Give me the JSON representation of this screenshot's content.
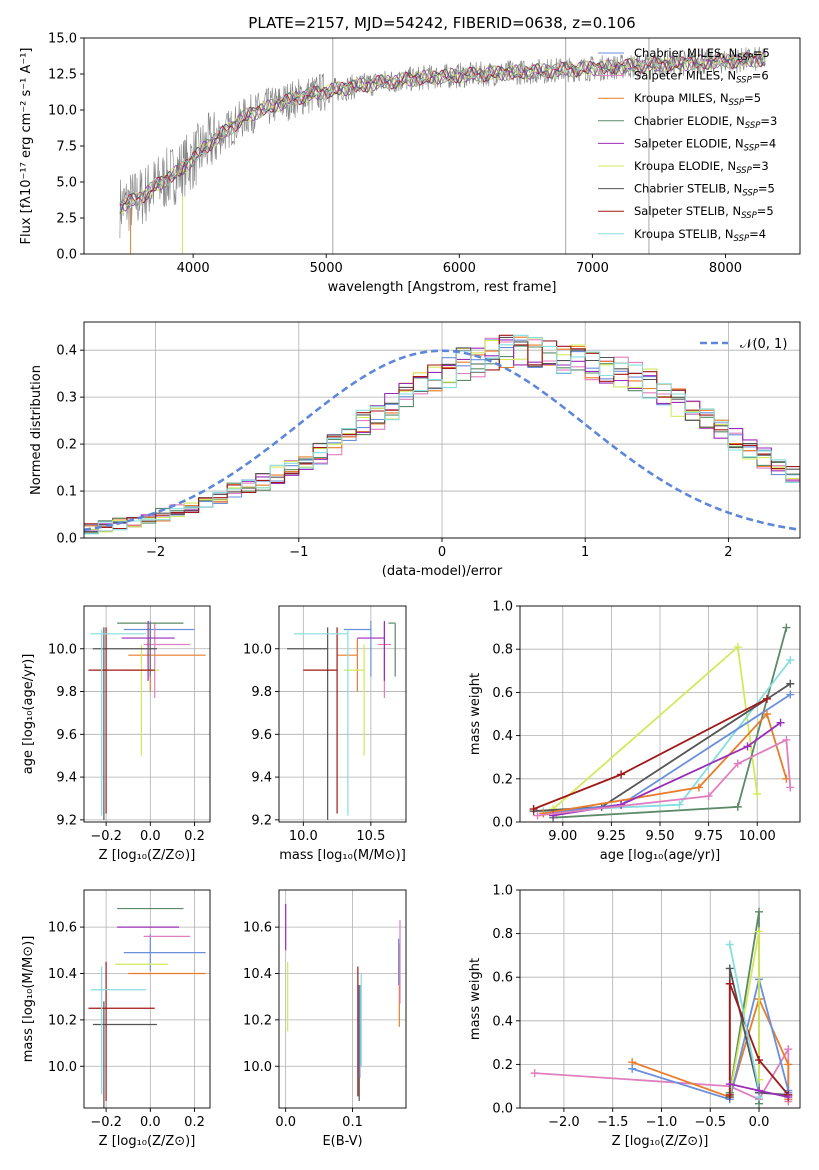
{
  "title": "PLATE=2157, MJD=54242, FIBERID=0638, z=0.106",
  "colors": {
    "chabrier_miles": "#6a8fdc",
    "salpeter_miles": "#e07fbf",
    "kroupa_miles": "#e87d2a",
    "chabrier_elodie": "#5c8a68",
    "salpeter_elodie": "#9a2db8",
    "kroupa_elodie": "#d3e85a",
    "chabrier_stelib": "#555555",
    "salpeter_stelib": "#a01818",
    "kroupa_stelib": "#86dede",
    "data": "#808080"
  },
  "chart_data": [
    {
      "id": "spectrum",
      "type": "line",
      "title": "PLATE=2157, MJD=54242, FIBERID=0638, z=0.106",
      "xlabel": "wavelength [Angstrom, rest frame]",
      "ylabel": "Flux [fλ10⁻¹⁷ erg cm⁻² s⁻¹ A⁻¹]",
      "xlim": [
        3180,
        8560
      ],
      "ylim": [
        0,
        15
      ],
      "xticks": [
        "4000",
        "5000",
        "6000",
        "7000",
        "8000"
      ],
      "yticks": [
        "0.0",
        "2.5",
        "5.0",
        "7.5",
        "10.0",
        "12.5",
        "15.0"
      ],
      "grid": false,
      "legend_position": "top-right",
      "continuum": {
        "x": [
          3450,
          3600,
          3700,
          3800,
          3900,
          4000,
          4100,
          4200,
          4300,
          4400,
          4600,
          4800,
          5000,
          5200,
          5400,
          5600,
          5800,
          6000,
          6200,
          6400,
          6600,
          6800,
          7000,
          7200,
          7400,
          7600,
          7800,
          8000,
          8200,
          8300
        ],
        "y": [
          3.3,
          3.9,
          4.6,
          5.2,
          5.8,
          6.6,
          7.5,
          8.2,
          8.9,
          9.6,
          10.3,
          10.9,
          11.3,
          11.6,
          11.9,
          12.1,
          12.3,
          12.4,
          12.5,
          12.6,
          12.7,
          12.8,
          12.9,
          13.0,
          13.1,
          13.2,
          13.3,
          13.4,
          13.5,
          13.5
        ]
      },
      "series": [
        {
          "name": "Chabrier MILES, N_SSP=5",
          "key": "chabrier_miles"
        },
        {
          "name": "Salpeter MILES, N_SSP=6",
          "key": "salpeter_miles"
        },
        {
          "name": "Kroupa MILES, N_SSP=5",
          "key": "kroupa_miles"
        },
        {
          "name": "Chabrier ELODIE, N_SSP=3",
          "key": "chabrier_elodie"
        },
        {
          "name": "Salpeter ELODIE, N_SSP=4",
          "key": "salpeter_elodie"
        },
        {
          "name": "Kroupa ELODIE, N_SSP=3",
          "key": "kroupa_elodie"
        },
        {
          "name": "Chabrier STELIB, N_SSP=5",
          "key": "chabrier_stelib"
        },
        {
          "name": "Salpeter STELIB, N_SSP=5",
          "key": "salpeter_stelib"
        },
        {
          "name": "Kroupa STELIB, N_SSP=4",
          "key": "kroupa_stelib"
        }
      ]
    },
    {
      "id": "residuals",
      "type": "step-histogram",
      "xlabel": "(data-model)/error",
      "ylabel": "Normed distribution",
      "xlim": [
        -2.5,
        2.5
      ],
      "ylim": [
        0,
        0.46
      ],
      "xticks": [
        "−2",
        "−1",
        "0",
        "1",
        "2"
      ],
      "yticks": [
        "0.0",
        "0.1",
        "0.2",
        "0.3",
        "0.4"
      ],
      "grid": true,
      "legend": "𝒩(0, 1)",
      "legend_position": "top-right",
      "bin_width": 0.1,
      "bin_start": -2.5,
      "base_density": [
        0.02,
        0.025,
        0.03,
        0.035,
        0.04,
        0.05,
        0.06,
        0.065,
        0.075,
        0.09,
        0.1,
        0.11,
        0.12,
        0.135,
        0.15,
        0.16,
        0.18,
        0.2,
        0.22,
        0.245,
        0.26,
        0.28,
        0.3,
        0.32,
        0.34,
        0.355,
        0.37,
        0.38,
        0.39,
        0.395,
        0.395,
        0.39,
        0.385,
        0.38,
        0.375,
        0.37,
        0.36,
        0.35,
        0.34,
        0.33,
        0.31,
        0.29,
        0.27,
        0.25,
        0.23,
        0.21,
        0.19,
        0.17,
        0.15,
        0.135,
        0.12,
        0.105,
        0.09,
        0.08,
        0.07,
        0.06,
        0.05,
        0.04,
        0.035,
        0.03
      ]
    },
    {
      "id": "age_vs_Z",
      "type": "errorbar",
      "xlabel": "Z [log₁₀(Z/Z⊙)]",
      "ylabel": "age  [log₁₀(age/yr)]",
      "xlim": [
        -0.3,
        0.27
      ],
      "ylim": [
        9.19,
        10.2
      ],
      "xticks": [
        "−0.2",
        "0.0",
        "0.2"
      ],
      "yticks": [
        "9.2",
        "9.4",
        "9.6",
        "9.8",
        "10.0"
      ],
      "grid": true,
      "points": [
        {
          "key": "chabrier_miles",
          "x": 0.0,
          "xerr": [
            0.12,
            0.2
          ],
          "y": 10.09,
          "yerr": [
            0.22,
            0.04
          ]
        },
        {
          "key": "salpeter_miles",
          "x": 0.02,
          "xerr": [
            0.05,
            0.16
          ],
          "y": 10.02,
          "yerr": [
            0.25,
            0.1
          ]
        },
        {
          "key": "kroupa_miles",
          "x": 0.0,
          "xerr": [
            0.1,
            0.25
          ],
          "y": 9.97,
          "yerr": [
            0.17,
            0.08
          ]
        },
        {
          "key": "chabrier_elodie",
          "x": 0.0,
          "xerr": [
            0.15,
            0.15
          ],
          "y": 10.12,
          "yerr": [
            0.25,
            0.0
          ]
        },
        {
          "key": "salpeter_elodie",
          "x": -0.01,
          "xerr": [
            0.12,
            0.12
          ],
          "y": 10.05,
          "yerr": [
            0.2,
            0.08
          ]
        },
        {
          "key": "kroupa_elodie",
          "x": -0.04,
          "xerr": [
            0.08,
            0.08
          ],
          "y": 9.9,
          "yerr": [
            0.4,
            0.12
          ]
        },
        {
          "key": "chabrier_stelib",
          "x": -0.21,
          "xerr": [
            0.05,
            0.24
          ],
          "y": 10.0,
          "yerr": [
            0.8,
            0.1
          ]
        },
        {
          "key": "salpeter_stelib",
          "x": -0.2,
          "xerr": [
            0.08,
            0.22
          ],
          "y": 9.9,
          "yerr": [
            0.67,
            0.2
          ]
        },
        {
          "key": "kroupa_stelib",
          "x": -0.22,
          "xerr": [
            0.05,
            0.2
          ],
          "y": 10.07,
          "yerr": [
            0.85,
            0.02
          ]
        }
      ]
    },
    {
      "id": "age_vs_mass",
      "type": "errorbar",
      "xlabel": "mass [log₁₀(M/M⊙)]",
      "ylabel": "",
      "xlim": [
        9.82,
        10.76
      ],
      "ylim": [
        9.19,
        10.2
      ],
      "xticks": [
        "10.0",
        "10.5"
      ],
      "yticks": [
        "9.2",
        "9.4",
        "9.6",
        "9.8",
        "10.0"
      ],
      "grid": true,
      "points": [
        {
          "key": "chabrier_miles",
          "x": 10.5,
          "xerr": [
            0.2,
            0.0
          ],
          "y": 10.09,
          "yerr": [
            0.22,
            0.04
          ]
        },
        {
          "key": "salpeter_miles",
          "x": 10.6,
          "xerr": [
            0.05,
            0.05
          ],
          "y": 10.02,
          "yerr": [
            0.25,
            0.1
          ]
        },
        {
          "key": "kroupa_miles",
          "x": 10.4,
          "xerr": [
            0.15,
            0.0
          ],
          "y": 9.97,
          "yerr": [
            0.17,
            0.08
          ]
        },
        {
          "key": "chabrier_elodie",
          "x": 10.68,
          "xerr": [
            0.05,
            0.0
          ],
          "y": 10.12,
          "yerr": [
            0.25,
            0.0
          ]
        },
        {
          "key": "salpeter_elodie",
          "x": 10.6,
          "xerr": [
            0.2,
            0.0
          ],
          "y": 10.05,
          "yerr": [
            0.2,
            0.08
          ]
        },
        {
          "key": "kroupa_elodie",
          "x": 10.45,
          "xerr": [
            0.15,
            0.0
          ],
          "y": 9.9,
          "yerr": [
            0.4,
            0.12
          ]
        },
        {
          "key": "chabrier_stelib",
          "x": 10.18,
          "xerr": [
            0.3,
            0.0
          ],
          "y": 10.0,
          "yerr": [
            0.8,
            0.1
          ]
        },
        {
          "key": "salpeter_stelib",
          "x": 10.25,
          "xerr": [
            0.25,
            0.0
          ],
          "y": 9.9,
          "yerr": [
            0.67,
            0.2
          ]
        },
        {
          "key": "kroupa_stelib",
          "x": 10.33,
          "xerr": [
            0.4,
            0.0
          ],
          "y": 10.07,
          "yerr": [
            0.85,
            0.02
          ]
        }
      ]
    },
    {
      "id": "massweight_vs_age",
      "type": "line",
      "xlabel": "age  [log₁₀(age/yr)]",
      "ylabel": "mass weight",
      "xlim": [
        8.78,
        10.22
      ],
      "ylim": [
        0,
        1.0
      ],
      "xticks": [
        "9.00",
        "9.25",
        "9.50",
        "9.75",
        "10.00"
      ],
      "yticks": [
        "0.0",
        "0.2",
        "0.4",
        "0.6",
        "0.8",
        "1.0"
      ],
      "grid": true,
      "series": [
        {
          "key": "kroupa_elodie",
          "x": [
            8.95,
            9.9,
            10.0
          ],
          "y": [
            0.06,
            0.81,
            0.13
          ]
        },
        {
          "key": "chabrier_elodie",
          "x": [
            8.95,
            9.9,
            10.15
          ],
          "y": [
            0.02,
            0.07,
            0.9
          ]
        },
        {
          "key": "kroupa_stelib",
          "x": [
            8.9,
            9.6,
            10.17
          ],
          "y": [
            0.05,
            0.08,
            0.75
          ]
        },
        {
          "key": "chabrier_stelib",
          "x": [
            8.85,
            9.2,
            10.17
          ],
          "y": [
            0.05,
            0.07,
            0.64
          ]
        },
        {
          "key": "salpeter_stelib",
          "x": [
            8.85,
            9.3,
            10.05
          ],
          "y": [
            0.06,
            0.22,
            0.57
          ]
        },
        {
          "key": "chabrier_miles",
          "x": [
            8.9,
            9.3,
            10.17
          ],
          "y": [
            0.04,
            0.08,
            0.59
          ]
        },
        {
          "key": "kroupa_miles",
          "x": [
            8.9,
            9.7,
            10.05,
            10.15
          ],
          "y": [
            0.04,
            0.16,
            0.5,
            0.2
          ]
        },
        {
          "key": "salpeter_elodie",
          "x": [
            8.95,
            9.3,
            9.95,
            10.12
          ],
          "y": [
            0.03,
            0.08,
            0.35,
            0.46
          ]
        },
        {
          "key": "salpeter_miles",
          "x": [
            8.87,
            9.75,
            9.9,
            10.15,
            10.17
          ],
          "y": [
            0.03,
            0.12,
            0.27,
            0.38,
            0.16
          ]
        }
      ]
    },
    {
      "id": "mass_vs_Z",
      "type": "errorbar",
      "xlabel": "Z [log₁₀(Z/Z⊙)]",
      "ylabel": "mass [log₁₀(M/M⊙)]",
      "xlim": [
        -0.3,
        0.27
      ],
      "ylim": [
        9.82,
        10.76
      ],
      "xticks": [
        "−0.2",
        "0.0",
        "0.2"
      ],
      "yticks": [
        "10.0",
        "10.2",
        "10.4",
        "10.6"
      ],
      "grid": true,
      "points": [
        {
          "key": "chabrier_miles",
          "x": 0.0,
          "xerr": [
            0.12,
            0.25
          ],
          "y": 10.49,
          "yerr": [
            0.08,
            0.08
          ]
        },
        {
          "key": "salpeter_miles",
          "x": 0.02,
          "xerr": [
            0.05,
            0.16
          ],
          "y": 10.56,
          "yerr": [
            0.0,
            0.0
          ]
        },
        {
          "key": "kroupa_miles",
          "x": 0.0,
          "xerr": [
            0.1,
            0.25
          ],
          "y": 10.4,
          "yerr": [
            0.0,
            0.0
          ]
        },
        {
          "key": "chabrier_elodie",
          "x": 0.0,
          "xerr": [
            0.15,
            0.15
          ],
          "y": 10.68,
          "yerr": [
            0.0,
            0.0
          ]
        },
        {
          "key": "salpeter_elodie",
          "x": -0.01,
          "xerr": [
            0.14,
            0.14
          ],
          "y": 10.6,
          "yerr": [
            0.0,
            0.0
          ]
        },
        {
          "key": "kroupa_elodie",
          "x": -0.04,
          "xerr": [
            0.12,
            0.12
          ],
          "y": 10.44,
          "yerr": [
            0.0,
            0.0
          ]
        },
        {
          "key": "chabrier_stelib",
          "x": -0.21,
          "xerr": [
            0.05,
            0.24
          ],
          "y": 10.18,
          "yerr": [
            0.4,
            0.1
          ]
        },
        {
          "key": "salpeter_stelib",
          "x": -0.2,
          "xerr": [
            0.08,
            0.22
          ],
          "y": 10.25,
          "yerr": [
            0.4,
            0.2
          ]
        },
        {
          "key": "kroupa_stelib",
          "x": -0.22,
          "xerr": [
            0.05,
            0.2
          ],
          "y": 10.33,
          "yerr": [
            0.45,
            0.1
          ]
        }
      ]
    },
    {
      "id": "mass_vs_EBV",
      "type": "errorbar",
      "xlabel": "E(B-V)",
      "ylabel": "",
      "xlim": [
        -0.01,
        0.18
      ],
      "ylim": [
        9.82,
        10.76
      ],
      "xticks": [
        "0.0",
        "0.1"
      ],
      "yticks": [
        "10.0",
        "10.2",
        "10.4",
        "10.6"
      ],
      "grid": true,
      "points": [
        {
          "key": "salpeter_elodie",
          "x": 0.0,
          "xerr": [
            0.0,
            0.0
          ],
          "y": 10.6,
          "yerr": [
            0.1,
            0.1
          ]
        },
        {
          "key": "kroupa_elodie",
          "x": 0.003,
          "xerr": [
            0.0,
            0.0
          ],
          "y": 10.3,
          "yerr": [
            0.15,
            0.15
          ]
        },
        {
          "key": "salpeter_stelib",
          "x": 0.108,
          "xerr": [
            0.0,
            0.0
          ],
          "y": 10.15,
          "yerr": [
            0.28,
            0.28
          ]
        },
        {
          "key": "chabrier_stelib",
          "x": 0.11,
          "xerr": [
            0.0,
            0.0
          ],
          "y": 10.1,
          "yerr": [
            0.25,
            0.25
          ]
        },
        {
          "key": "chabrier_miles",
          "x": 0.111,
          "xerr": [
            0.0,
            0.0
          ],
          "y": 10.15,
          "yerr": [
            0.2,
            0.2
          ]
        },
        {
          "key": "kroupa_stelib",
          "x": 0.113,
          "xerr": [
            0.0,
            0.0
          ],
          "y": 10.2,
          "yerr": [
            0.2,
            0.2
          ]
        },
        {
          "key": "kroupa_miles",
          "x": 0.17,
          "xerr": [
            0.0,
            0.0
          ],
          "y": 10.35,
          "yerr": [
            0.18,
            0.18
          ]
        },
        {
          "key": "chabrier_miles",
          "x": 0.169,
          "xerr": [
            0.0,
            0.0
          ],
          "y": 10.45,
          "yerr": [
            0.1,
            0.1
          ]
        },
        {
          "key": "salpeter_miles",
          "x": 0.171,
          "xerr": [
            0.0,
            0.0
          ],
          "y": 10.45,
          "yerr": [
            0.18,
            0.18
          ]
        }
      ]
    },
    {
      "id": "massweight_vs_Z",
      "type": "line",
      "xlabel": "Z [log₁₀(Z/Z⊙)]",
      "ylabel": "mass weight",
      "xlim": [
        -2.45,
        0.42
      ],
      "ylim": [
        0,
        1.0
      ],
      "xticks": [
        "−2.0",
        "−1.5",
        "−1.0",
        "−0.5",
        "0.0"
      ],
      "yticks": [
        "0.0",
        "0.2",
        "0.4",
        "0.6",
        "0.8",
        "1.0"
      ],
      "grid": true,
      "series": [
        {
          "key": "salpeter_miles",
          "x": [
            -2.3,
            -0.3,
            0.0,
            0.3,
            0.3
          ],
          "y": [
            0.16,
            0.1,
            0.04,
            0.27,
            0.03
          ]
        },
        {
          "key": "kroupa_miles",
          "x": [
            -1.3,
            -0.3,
            0.0,
            0.3,
            0.3
          ],
          "y": [
            0.21,
            0.05,
            0.5,
            0.2,
            0.04
          ]
        },
        {
          "key": "chabrier_miles",
          "x": [
            -1.3,
            -0.3,
            0.0,
            0.3,
            0.3
          ],
          "y": [
            0.18,
            0.04,
            0.59,
            0.08,
            0.07
          ]
        },
        {
          "key": "chabrier_elodie",
          "x": [
            -0.3,
            0.0,
            0.0
          ],
          "y": [
            0.07,
            0.9,
            0.02
          ]
        },
        {
          "key": "kroupa_elodie",
          "x": [
            -0.3,
            0.0,
            0.0
          ],
          "y": [
            0.06,
            0.81,
            0.13
          ]
        },
        {
          "key": "chabrier_stelib",
          "x": [
            -0.3,
            -0.3,
            0.0,
            0.3
          ],
          "y": [
            0.05,
            0.64,
            0.07,
            0.06
          ]
        },
        {
          "key": "salpeter_stelib",
          "x": [
            -0.3,
            -0.3,
            0.0,
            0.3
          ],
          "y": [
            0.06,
            0.57,
            0.22,
            0.06
          ]
        },
        {
          "key": "kroupa_stelib",
          "x": [
            -0.3,
            0.0,
            0.0
          ],
          "y": [
            0.75,
            0.08,
            0.05
          ]
        },
        {
          "key": "salpeter_elodie",
          "x": [
            -0.3,
            0.0,
            0.3
          ],
          "y": [
            0.11,
            0.08,
            0.05
          ]
        }
      ]
    }
  ]
}
